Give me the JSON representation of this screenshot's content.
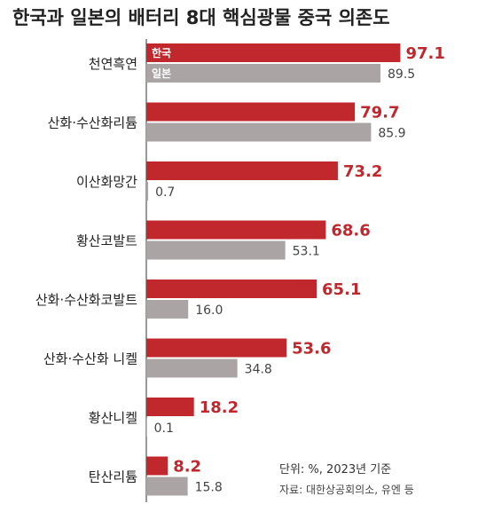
{
  "chart_data": {
    "type": "bar",
    "orientation": "horizontal",
    "title": "한국과 일본의 배터리 8대 핵심광물 중국 의존도",
    "categories": [
      "천연흑연",
      "산화·수산화리튬",
      "이산화망간",
      "황산코발트",
      "산화·수산화코발트",
      "산화·수산화 니켈",
      "황산니켈",
      "탄산리튬"
    ],
    "series": [
      {
        "name": "한국",
        "color": "#c0282d",
        "values": [
          97.1,
          79.7,
          73.2,
          68.6,
          65.1,
          53.6,
          18.2,
          8.2
        ]
      },
      {
        "name": "일본",
        "color": "#aaa5a4",
        "values": [
          89.5,
          85.9,
          0.7,
          53.1,
          16.0,
          34.8,
          0.1,
          15.8
        ]
      }
    ],
    "value_labels": {
      "한국": [
        "97.1",
        "79.7",
        "73.2",
        "68.6",
        "65.1",
        "53.6",
        "18.2",
        "8.2"
      ],
      "일본": [
        "89.5",
        "85.9",
        "0.7",
        "53.1",
        "16.0",
        "34.8",
        "0.1",
        "15.8"
      ]
    },
    "xlim": [
      0,
      100
    ],
    "grid": false,
    "legend": "inside-first-bars",
    "notes": {
      "unit": "단위: %, 2023년 기준",
      "source": "자료: 대한상공회의소, 유엔 등"
    }
  }
}
